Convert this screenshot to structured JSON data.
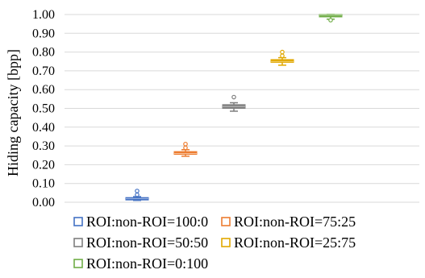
{
  "chart_data": {
    "type": "box",
    "ylabel": "Hiding capacity [bpp]",
    "ylim": [
      0.0,
      1.0
    ],
    "ytick_step": 0.1,
    "yticks": [
      "0.00",
      "0.10",
      "0.20",
      "0.30",
      "0.40",
      "0.50",
      "0.60",
      "0.70",
      "0.80",
      "0.90",
      "1.00"
    ],
    "grid": true,
    "legend_position": "bottom",
    "series": [
      {
        "name": "ROI:non-ROI=100:0",
        "color": "#4472C4",
        "q1": 0.015,
        "median": 0.02,
        "q3": 0.025,
        "min": 0.01,
        "max": 0.03,
        "outliers": [
          0.04,
          0.06
        ]
      },
      {
        "name": "ROI:non-ROI=75:25",
        "color": "#ED7D31",
        "q1": 0.255,
        "median": 0.26,
        "q3": 0.27,
        "min": 0.245,
        "max": 0.28,
        "outliers": [
          0.29,
          0.31
        ]
      },
      {
        "name": "ROI:non-ROI=50:50",
        "color": "#7F7F7F",
        "q1": 0.5,
        "median": 0.51,
        "q3": 0.52,
        "min": 0.485,
        "max": 0.53,
        "outliers": [
          0.56
        ]
      },
      {
        "name": "ROI:non-ROI=25:75",
        "color": "#E1A800",
        "q1": 0.745,
        "median": 0.75,
        "q3": 0.76,
        "min": 0.73,
        "max": 0.77,
        "outliers": [
          0.78,
          0.8
        ]
      },
      {
        "name": "ROI:non-ROI=0:100",
        "color": "#70AD47",
        "q1": 0.995,
        "median": 0.997,
        "q3": 1.0,
        "min": 0.975,
        "max": 1.0,
        "outliers": [
          0.97
        ]
      }
    ]
  }
}
